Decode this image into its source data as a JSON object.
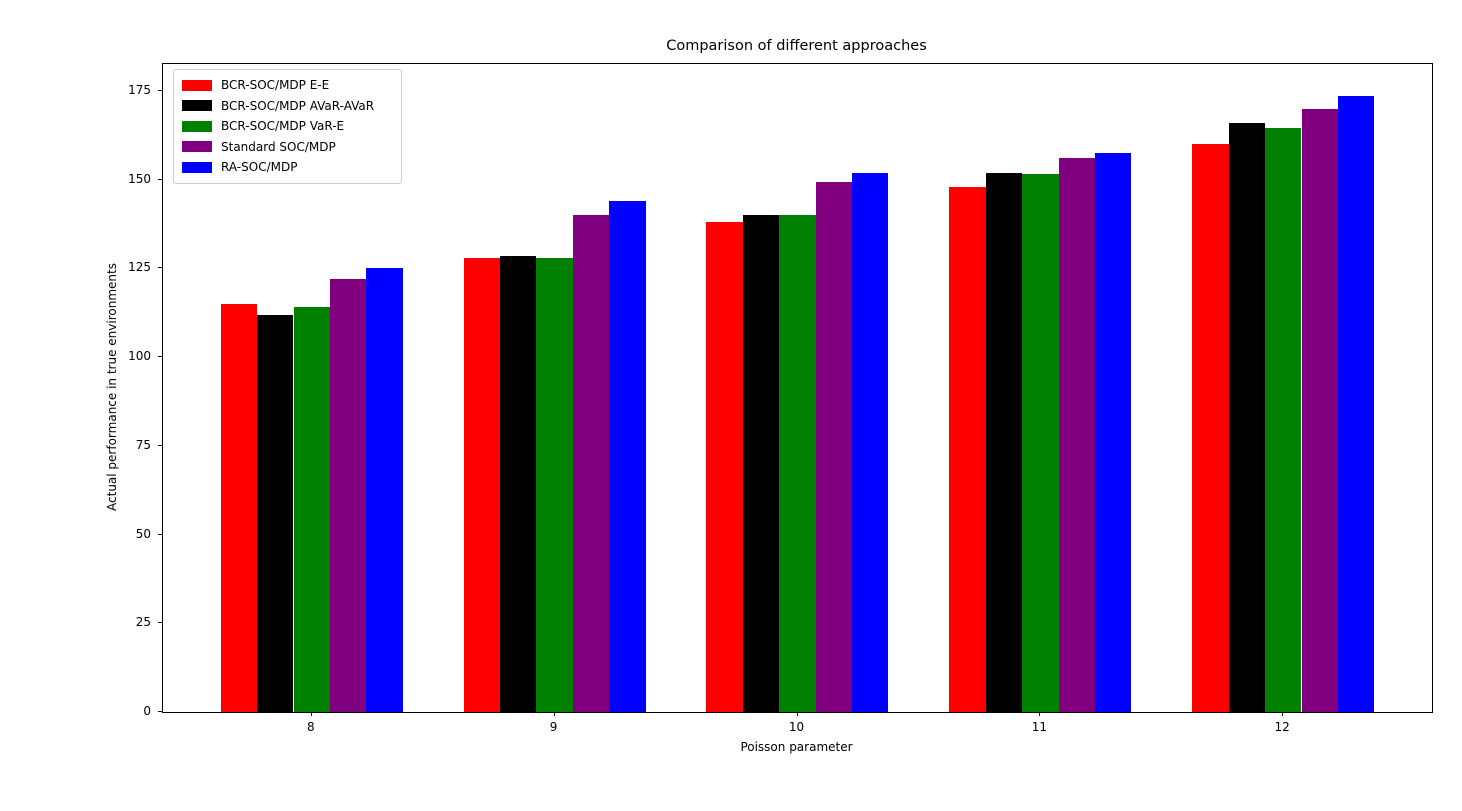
{
  "title": "Comparison of different approaches",
  "chart_data": {
    "type": "bar",
    "title": "Comparison of different approaches",
    "xlabel": "Poisson parameter",
    "ylabel": "Actual performance in true environments",
    "categories": [
      8,
      9,
      10,
      11,
      12
    ],
    "series": [
      {
        "name": "BCR-SOC/MDP E-E",
        "color": "#ff0000",
        "values": [
          115,
          128,
          138,
          148,
          160
        ]
      },
      {
        "name": "BCR-SOC/MDP AVaR-AVaR",
        "color": "#000000",
        "values": [
          112,
          128.5,
          140,
          152,
          166
        ]
      },
      {
        "name": "BCR-SOC/MDP VaR-E",
        "color": "#008000",
        "values": [
          114,
          128,
          140,
          151.5,
          164.5
        ]
      },
      {
        "name": "Standard SOC/MDP",
        "color": "#800080",
        "values": [
          122,
          140,
          149.5,
          156,
          170
        ]
      },
      {
        "name": "RA-SOC/MDP",
        "color": "#0000ff",
        "values": [
          125,
          144,
          152,
          157.5,
          173.5
        ]
      }
    ],
    "yticks": [
      0,
      25,
      50,
      75,
      100,
      125,
      150,
      175
    ],
    "ylim": [
      0,
      182.6
    ],
    "xlim": [
      7.3875,
      12.6125
    ],
    "bar_width": 0.15,
    "grid": false,
    "legend_position": "upper left",
    "axis_color": "#000000",
    "background_color": "#ffffff"
  }
}
